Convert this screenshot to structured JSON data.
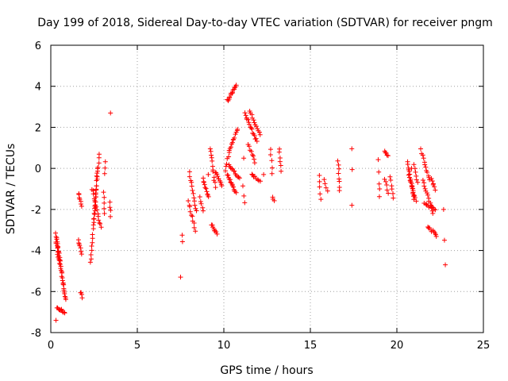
{
  "chart_data": {
    "type": "scatter",
    "title": "Day 199 of 2018, Sidereal Day-to-day VTEC variation (SDTVAR) for receiver pngm",
    "xlabel": "GPS time / hours",
    "ylabel": "SDTVAR / TECUs",
    "xlim": [
      0,
      25
    ],
    "ylim": [
      -8,
      6
    ],
    "xticks": [
      "0",
      "5",
      "10",
      "15",
      "20",
      "25"
    ],
    "yticks": [
      "-8",
      "-6",
      "-4",
      "-2",
      "0",
      "2",
      "4",
      "6"
    ],
    "grid": true,
    "marker": "+",
    "marker_color": "#ff0000",
    "tracks": [
      {
        "start": [
          0.3,
          -3.2
        ],
        "end": [
          0.85,
          -6.4
        ],
        "n": 34
      },
      {
        "start": [
          0.35,
          -6.8
        ],
        "end": [
          0.8,
          -7.0
        ],
        "n": 12
      },
      {
        "start": [
          0.3,
          -3.6
        ],
        "end": [
          0.5,
          -4.6
        ],
        "n": 10
      },
      {
        "start": [
          1.6,
          -1.2
        ],
        "end": [
          1.8,
          -1.9
        ],
        "n": 7
      },
      {
        "start": [
          1.6,
          -3.5
        ],
        "end": [
          1.8,
          -4.2
        ],
        "n": 8
      },
      {
        "start": [
          1.7,
          -6.0
        ],
        "end": [
          1.8,
          -6.3
        ],
        "n": 4
      },
      {
        "start": [
          2.3,
          -4.6
        ],
        "end": [
          2.7,
          0.0
        ],
        "n": 24
      },
      {
        "start": [
          2.5,
          -2.5
        ],
        "end": [
          2.8,
          0.7
        ],
        "n": 16
      },
      {
        "start": [
          2.4,
          -1.0
        ],
        "end": [
          2.9,
          -2.9
        ],
        "n": 14
      },
      {
        "start": [
          3.05,
          -1.2
        ],
        "end": [
          3.1,
          -2.2
        ],
        "n": 5
      },
      {
        "start": [
          3.15,
          0.3
        ],
        "end": [
          3.1,
          -0.3
        ],
        "n": 3
      },
      {
        "start": [
          3.4,
          -1.7
        ],
        "end": [
          3.45,
          -2.3
        ],
        "n": 4
      },
      {
        "start": [
          7.6,
          -3.3
        ],
        "end": [
          7.6,
          -3.6
        ],
        "n": 2
      },
      {
        "start": [
          8.0,
          -0.2
        ],
        "end": [
          8.4,
          -2.1
        ],
        "n": 12
      },
      {
        "start": [
          7.95,
          -1.6
        ],
        "end": [
          8.35,
          -3.0
        ],
        "n": 10
      },
      {
        "start": [
          8.6,
          -1.4
        ],
        "end": [
          8.8,
          -2.1
        ],
        "n": 5
      },
      {
        "start": [
          8.8,
          -0.5
        ],
        "end": [
          9.1,
          -1.4
        ],
        "n": 10
      },
      {
        "start": [
          9.2,
          1.0
        ],
        "end": [
          9.5,
          -0.9
        ],
        "n": 12
      },
      {
        "start": [
          9.3,
          -2.7
        ],
        "end": [
          9.6,
          -3.2
        ],
        "n": 8
      },
      {
        "start": [
          9.5,
          -0.2
        ],
        "end": [
          9.9,
          -0.8
        ],
        "n": 10
      },
      {
        "start": [
          10.1,
          -0.1
        ],
        "end": [
          10.3,
          0.8
        ],
        "n": 6
      },
      {
        "start": [
          10.2,
          3.3
        ],
        "end": [
          10.7,
          4.0
        ],
        "n": 14
      },
      {
        "start": [
          10.3,
          0.9
        ],
        "end": [
          10.8,
          1.9
        ],
        "n": 12
      },
      {
        "start": [
          10.2,
          -0.3
        ],
        "end": [
          10.7,
          -1.2
        ],
        "n": 14
      },
      {
        "start": [
          10.3,
          0.2
        ],
        "end": [
          10.9,
          -0.5
        ],
        "n": 12
      },
      {
        "start": [
          11.1,
          -0.9
        ],
        "end": [
          11.2,
          -1.7
        ],
        "n": 3
      },
      {
        "start": [
          11.2,
          2.7
        ],
        "end": [
          11.9,
          1.3
        ],
        "n": 16
      },
      {
        "start": [
          11.4,
          1.2
        ],
        "end": [
          11.8,
          0.3
        ],
        "n": 8
      },
      {
        "start": [
          11.5,
          2.8
        ],
        "end": [
          12.1,
          1.6
        ],
        "n": 12
      },
      {
        "start": [
          11.6,
          -0.3
        ],
        "end": [
          12.1,
          -0.6
        ],
        "n": 8
      },
      {
        "start": [
          12.7,
          0.9
        ],
        "end": [
          12.8,
          -0.2
        ],
        "n": 5
      },
      {
        "start": [
          12.8,
          -1.4
        ],
        "end": [
          12.9,
          -1.6
        ],
        "n": 3
      },
      {
        "start": [
          13.2,
          1.0
        ],
        "end": [
          13.3,
          -0.1
        ],
        "n": 6
      },
      {
        "start": [
          15.5,
          -0.4
        ],
        "end": [
          15.6,
          -1.5
        ],
        "n": 5
      },
      {
        "start": [
          15.8,
          -0.6
        ],
        "end": [
          15.9,
          -0.9
        ],
        "n": 3
      },
      {
        "start": [
          16.6,
          0.4
        ],
        "end": [
          16.7,
          -1.1
        ],
        "n": 8
      },
      {
        "start": [
          17.4,
          1.0
        ],
        "end": [
          17.4,
          0.0
        ],
        "n": 2
      },
      {
        "start": [
          18.9,
          0.4
        ],
        "end": [
          19.0,
          -1.4
        ],
        "n": 4
      },
      {
        "start": [
          19.3,
          0.9
        ],
        "end": [
          19.5,
          0.6
        ],
        "n": 5
      },
      {
        "start": [
          19.3,
          -0.5
        ],
        "end": [
          19.5,
          -1.2
        ],
        "n": 5
      },
      {
        "start": [
          19.6,
          -0.4
        ],
        "end": [
          19.8,
          -1.5
        ],
        "n": 6
      },
      {
        "start": [
          20.6,
          0.3
        ],
        "end": [
          21.0,
          -1.5
        ],
        "n": 16
      },
      {
        "start": [
          20.7,
          -0.3
        ],
        "end": [
          21.1,
          -1.6
        ],
        "n": 12
      },
      {
        "start": [
          21.0,
          0.2
        ],
        "end": [
          21.2,
          -0.7
        ],
        "n": 6
      },
      {
        "start": [
          21.4,
          0.9
        ],
        "end": [
          21.9,
          -0.6
        ],
        "n": 12
      },
      {
        "start": [
          21.5,
          -0.6
        ],
        "end": [
          22.1,
          -2.2
        ],
        "n": 14
      },
      {
        "start": [
          21.6,
          -1.7
        ],
        "end": [
          22.2,
          -2.0
        ],
        "n": 10
      },
      {
        "start": [
          21.8,
          -2.8
        ],
        "end": [
          22.3,
          -3.3
        ],
        "n": 10
      },
      {
        "start": [
          22.0,
          -0.5
        ],
        "end": [
          22.2,
          -1.0
        ],
        "n": 5
      }
    ],
    "points": [
      [
        0.3,
        -7.4
      ],
      [
        3.45,
        2.7
      ],
      [
        7.5,
        -5.3
      ],
      [
        16.0,
        -1.1
      ],
      [
        17.4,
        -1.8
      ],
      [
        22.7,
        -2.0
      ],
      [
        22.75,
        -3.5
      ],
      [
        22.8,
        -4.7
      ],
      [
        11.15,
        0.5
      ],
      [
        9.1,
        -0.3
      ],
      [
        12.3,
        -0.3
      ],
      [
        19.0,
        -1.0
      ],
      [
        20.85,
        0.0
      ],
      [
        22.1,
        -0.8
      ]
    ]
  }
}
